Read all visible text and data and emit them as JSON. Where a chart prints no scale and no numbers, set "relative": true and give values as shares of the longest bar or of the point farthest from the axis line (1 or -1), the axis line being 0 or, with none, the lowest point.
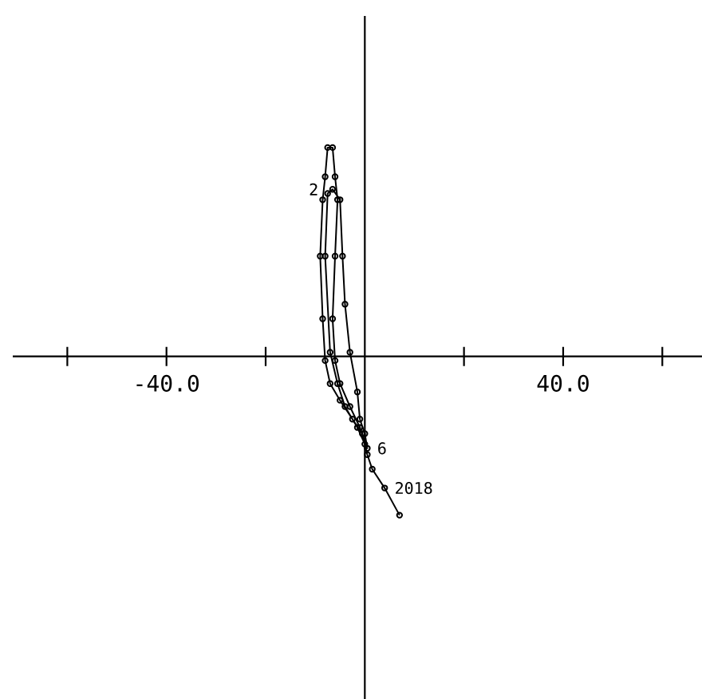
{
  "chart_data": {
    "type": "line",
    "relative": true,
    "marker": "circle",
    "line_style": "solid",
    "xlim": [
      -71,
      68
    ],
    "xticks": [
      {
        "value": -60,
        "label": null
      },
      {
        "value": -40,
        "label": "-40.0"
      },
      {
        "value": -20,
        "label": null
      },
      {
        "value": 20,
        "label": null
      },
      {
        "value": 40,
        "label": "40.0"
      },
      {
        "value": 60,
        "label": null
      }
    ],
    "annotations": [
      {
        "text": "2",
        "x": -8,
        "y": 0.8
      },
      {
        "text": "6",
        "x": 0.5,
        "y": -0.44
      },
      {
        "text": "2018",
        "x": 4,
        "y": -0.63
      }
    ],
    "series": [
      {
        "color": "#000000",
        "x": [
          7,
          4,
          1.5,
          0.5,
          -0.5,
          -2.5,
          -5,
          -7,
          -8,
          -8.5,
          -9,
          -8.5,
          -8,
          -7.5,
          -6.5,
          -6,
          -5.5,
          -6,
          -6.5,
          -6,
          -5,
          -3,
          -1,
          0.5,
          0,
          -1,
          -1.5,
          -3,
          -4,
          -4.5,
          -5,
          -6.5,
          -7.5,
          -8,
          -7,
          -5.5,
          -4,
          -1.5,
          0
        ],
        "values": [
          -0.76,
          -0.63,
          -0.54,
          -0.47,
          -0.37,
          -0.3,
          -0.21,
          -0.13,
          -0.02,
          0.18,
          0.48,
          0.75,
          0.86,
          1.0,
          1.0,
          0.86,
          0.75,
          0.48,
          0.18,
          -0.02,
          -0.13,
          -0.24,
          -0.34,
          -0.44,
          -0.37,
          -0.3,
          -0.17,
          0.02,
          0.25,
          0.48,
          0.75,
          0.8,
          0.78,
          0.48,
          0.02,
          -0.13,
          -0.24,
          -0.34,
          -0.42
        ]
      }
    ]
  }
}
